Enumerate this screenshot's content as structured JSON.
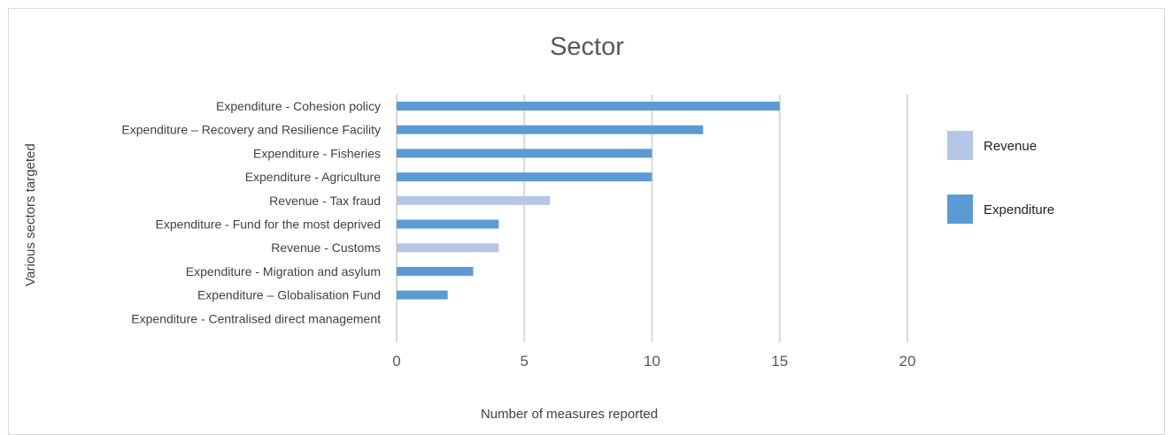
{
  "chart_data": {
    "type": "bar",
    "orientation": "horizontal",
    "title": "Sector",
    "xlabel": "Number of measures reported",
    "ylabel": "Various sectors targeted",
    "xlim": [
      0,
      20
    ],
    "xticks": [
      0,
      5,
      10,
      15,
      20
    ],
    "grid": true,
    "legend_position": "right",
    "series": [
      {
        "name": "Revenue",
        "color": "#b4c7e7"
      },
      {
        "name": "Expenditure",
        "color": "#5b9bd5"
      }
    ],
    "categories": [
      "Expenditure - Cohesion policy",
      "Expenditure – Recovery and Resilience Facility",
      "Expenditure - Fisheries",
      "Expenditure - Agriculture",
      "Revenue - Tax fraud",
      "Expenditure - Fund for the most deprived",
      "Revenue - Customs",
      "Expenditure - Migration and asylum",
      "Expenditure – Globalisation Fund",
      "Expenditure - Centralised direct management"
    ],
    "values": [
      15,
      12,
      10,
      10,
      6,
      4,
      4,
      3,
      2,
      0
    ],
    "bar_series": [
      "Expenditure",
      "Expenditure",
      "Expenditure",
      "Expenditure",
      "Revenue",
      "Expenditure",
      "Revenue",
      "Expenditure",
      "Expenditure",
      "Expenditure"
    ]
  }
}
